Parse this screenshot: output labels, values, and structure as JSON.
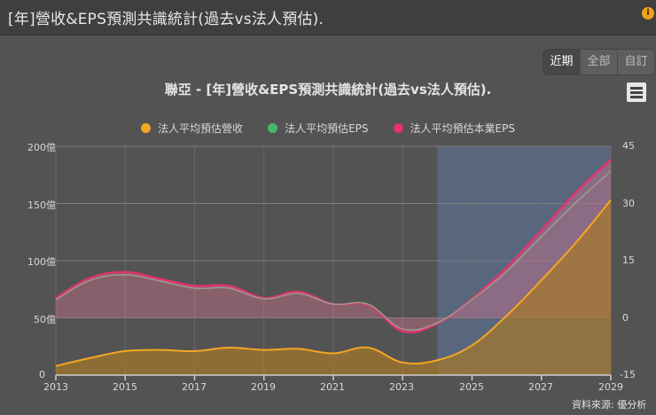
{
  "header": {
    "title": "[年]營收&EPS預測共識統計(過去vs法人預估).",
    "info_icon": "info-icon"
  },
  "range_buttons": [
    {
      "label": "近期",
      "active": true
    },
    {
      "label": "全部",
      "active": false
    },
    {
      "label": "自訂",
      "active": false
    }
  ],
  "menu_icon": "hamburger-menu-icon",
  "source": "資料來源: 優分析",
  "colors": {
    "revenue": "#f5a623",
    "eps": "#48b56b",
    "core_eps": "#e0336f",
    "forecast_band": "#5a6b86",
    "background": "#535353"
  },
  "chart_data": {
    "type": "area",
    "title": "聯亞 - [年]營收&EPS預測共識統計(過去vs法人預估).",
    "legend": [
      "法人平均預估營收",
      "法人平均預估EPS",
      "法人平均預估本業EPS"
    ],
    "legend_position": "top",
    "x": [
      2013,
      2014,
      2015,
      2016,
      2017,
      2018,
      2019,
      2020,
      2021,
      2022,
      2023,
      2024,
      2025,
      2026,
      2027,
      2028,
      2029
    ],
    "xticks": [
      "2013",
      "2015",
      "2017",
      "2019",
      "2021",
      "2023",
      "2025",
      "2027",
      "2029"
    ],
    "forecast_region_start": 2024,
    "series": [
      {
        "name": "法人平均預估營收",
        "axis": "left",
        "unit": "億",
        "values": [
          8,
          15,
          21,
          22,
          21,
          24,
          22,
          23,
          19,
          24,
          11,
          13,
          26,
          52,
          83,
          116,
          153
        ]
      },
      {
        "name": "法人平均預估EPS",
        "axis": "right",
        "values": [
          4.8,
          9.9,
          11.3,
          9.7,
          7.8,
          7.8,
          5.0,
          6.4,
          3.6,
          3.6,
          -2.9,
          -1.3,
          4.8,
          12.2,
          21.3,
          30.3,
          38.5
        ]
      },
      {
        "name": "法人平均預估本業EPS",
        "axis": "right",
        "values": [
          5.2,
          10.5,
          12.0,
          10.2,
          8.4,
          8.4,
          5.2,
          6.8,
          3.6,
          3.4,
          -3.5,
          -1.5,
          5.0,
          13.2,
          23.0,
          33.0,
          41.5
        ]
      }
    ],
    "yaxis_left": {
      "label": "",
      "ticks": [
        "0",
        "50億",
        "100億",
        "150億",
        "200億"
      ],
      "range": [
        0,
        200
      ]
    },
    "yaxis_right": {
      "label": "",
      "ticks": [
        "-15",
        "0",
        "15",
        "30",
        "45"
      ],
      "range": [
        -15,
        45
      ]
    },
    "grid": true
  }
}
